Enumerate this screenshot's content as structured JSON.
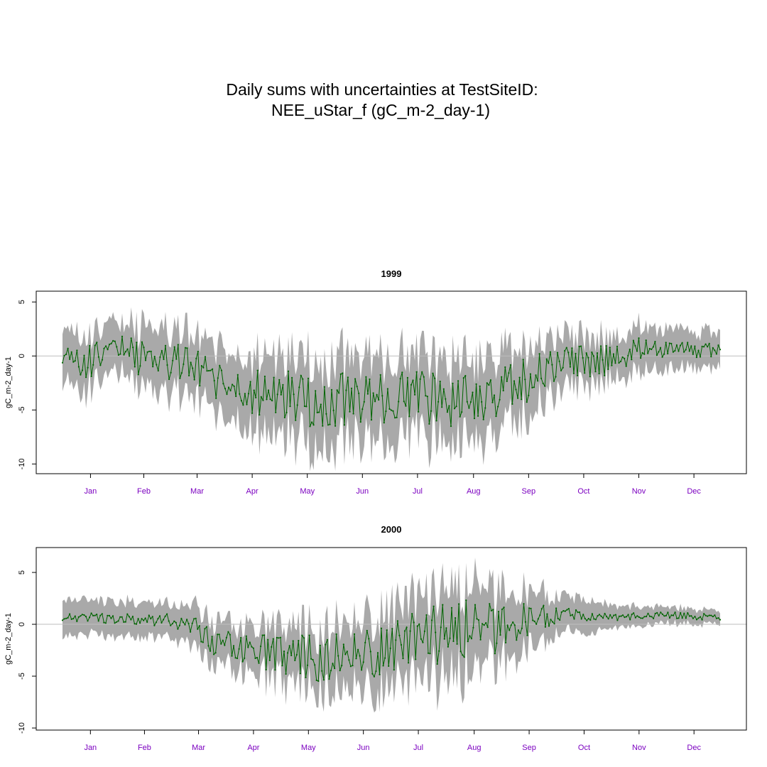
{
  "figure": {
    "title_line1": "Daily sums with uncertainties at TestSiteID:",
    "title_line2": "NEE_uStar_f (gC_m-2_day-1)"
  },
  "colors": {
    "band": "#a9a9a9",
    "line": "#006400",
    "zero_line": "#bebebe",
    "month_label": "#7b00c0"
  },
  "chart_data": [
    {
      "type": "area",
      "title": "1999",
      "ylabel": "gC_m-2_day-1",
      "ylim": [
        -10.9,
        6.0
      ],
      "yticks": [
        -10,
        -5,
        0,
        5
      ],
      "xlim": [
        1,
        365
      ],
      "month_labels": [
        "Jan",
        "Feb",
        "Mar",
        "Apr",
        "May",
        "Jun",
        "Jul",
        "Aug",
        "Sep",
        "Oct",
        "Nov",
        "Dec"
      ],
      "envelope": {
        "day": [
          1,
          15,
          31,
          45,
          59,
          75,
          90,
          105,
          120,
          135,
          152,
          165,
          181,
          196,
          212,
          227,
          243,
          258,
          273,
          288,
          304,
          320,
          334,
          350,
          365
        ],
        "mean": [
          0.0,
          -0.6,
          0.8,
          -0.6,
          -0.4,
          -0.9,
          -3.0,
          -3.4,
          -3.8,
          -4.1,
          -4.2,
          -3.9,
          -3.8,
          -3.6,
          -4.4,
          -3.7,
          -3.3,
          -2.3,
          -0.9,
          -0.6,
          -0.4,
          0.8,
          0.7,
          0.6,
          0.5
        ],
        "amplitude": [
          0.4,
          1.0,
          0.8,
          1.3,
          1.2,
          1.2,
          1.3,
          1.4,
          1.6,
          1.6,
          1.6,
          1.6,
          1.5,
          1.5,
          1.6,
          1.6,
          1.5,
          1.3,
          1.0,
          1.0,
          0.9,
          0.7,
          0.5,
          0.5,
          0.4
        ],
        "half_width": [
          2.5,
          2.4,
          2.2,
          2.7,
          2.7,
          2.8,
          3.0,
          3.3,
          3.6,
          3.8,
          3.8,
          3.7,
          3.6,
          3.5,
          3.8,
          3.7,
          3.5,
          3.1,
          2.6,
          2.2,
          2.0,
          2.0,
          1.9,
          1.7,
          1.6
        ]
      }
    },
    {
      "type": "area",
      "title": "2000",
      "ylabel": "gC_m-2_day-1",
      "ylim": [
        -10.2,
        7.4
      ],
      "yticks": [
        -10,
        -5,
        0,
        5
      ],
      "xlim": [
        1,
        366
      ],
      "month_labels": [
        "Jan",
        "Feb",
        "Mar",
        "Apr",
        "May",
        "Jun",
        "Jul",
        "Aug",
        "Sep",
        "Oct",
        "Nov",
        "Dec"
      ],
      "envelope": {
        "day": [
          1,
          20,
          40,
          60,
          70,
          80,
          90,
          100,
          120,
          140,
          152,
          165,
          182,
          196,
          213,
          228,
          244,
          258,
          274,
          290,
          305,
          320,
          335,
          350,
          366
        ],
        "mean": [
          0.7,
          0.6,
          0.5,
          0.4,
          0.0,
          -1.5,
          -2.0,
          -2.5,
          -3.0,
          -3.2,
          -3.4,
          -3.0,
          -2.1,
          -1.5,
          -0.8,
          -0.6,
          -0.3,
          0.3,
          0.9,
          0.9,
          0.6,
          0.8,
          0.9,
          0.8,
          0.6
        ],
        "amplitude": [
          0.2,
          0.3,
          0.3,
          0.4,
          0.8,
          1.0,
          1.0,
          1.0,
          1.2,
          1.4,
          1.6,
          1.7,
          1.7,
          1.7,
          1.9,
          1.9,
          1.6,
          1.2,
          0.7,
          0.4,
          0.2,
          0.2,
          0.2,
          0.2,
          0.2
        ],
        "half_width": [
          1.7,
          1.6,
          1.6,
          1.6,
          1.8,
          2.0,
          2.0,
          2.1,
          2.4,
          2.8,
          3.0,
          3.2,
          3.5,
          3.8,
          4.0,
          3.9,
          3.3,
          2.6,
          1.9,
          1.5,
          1.1,
          0.9,
          0.8,
          0.7,
          0.6
        ]
      }
    }
  ]
}
